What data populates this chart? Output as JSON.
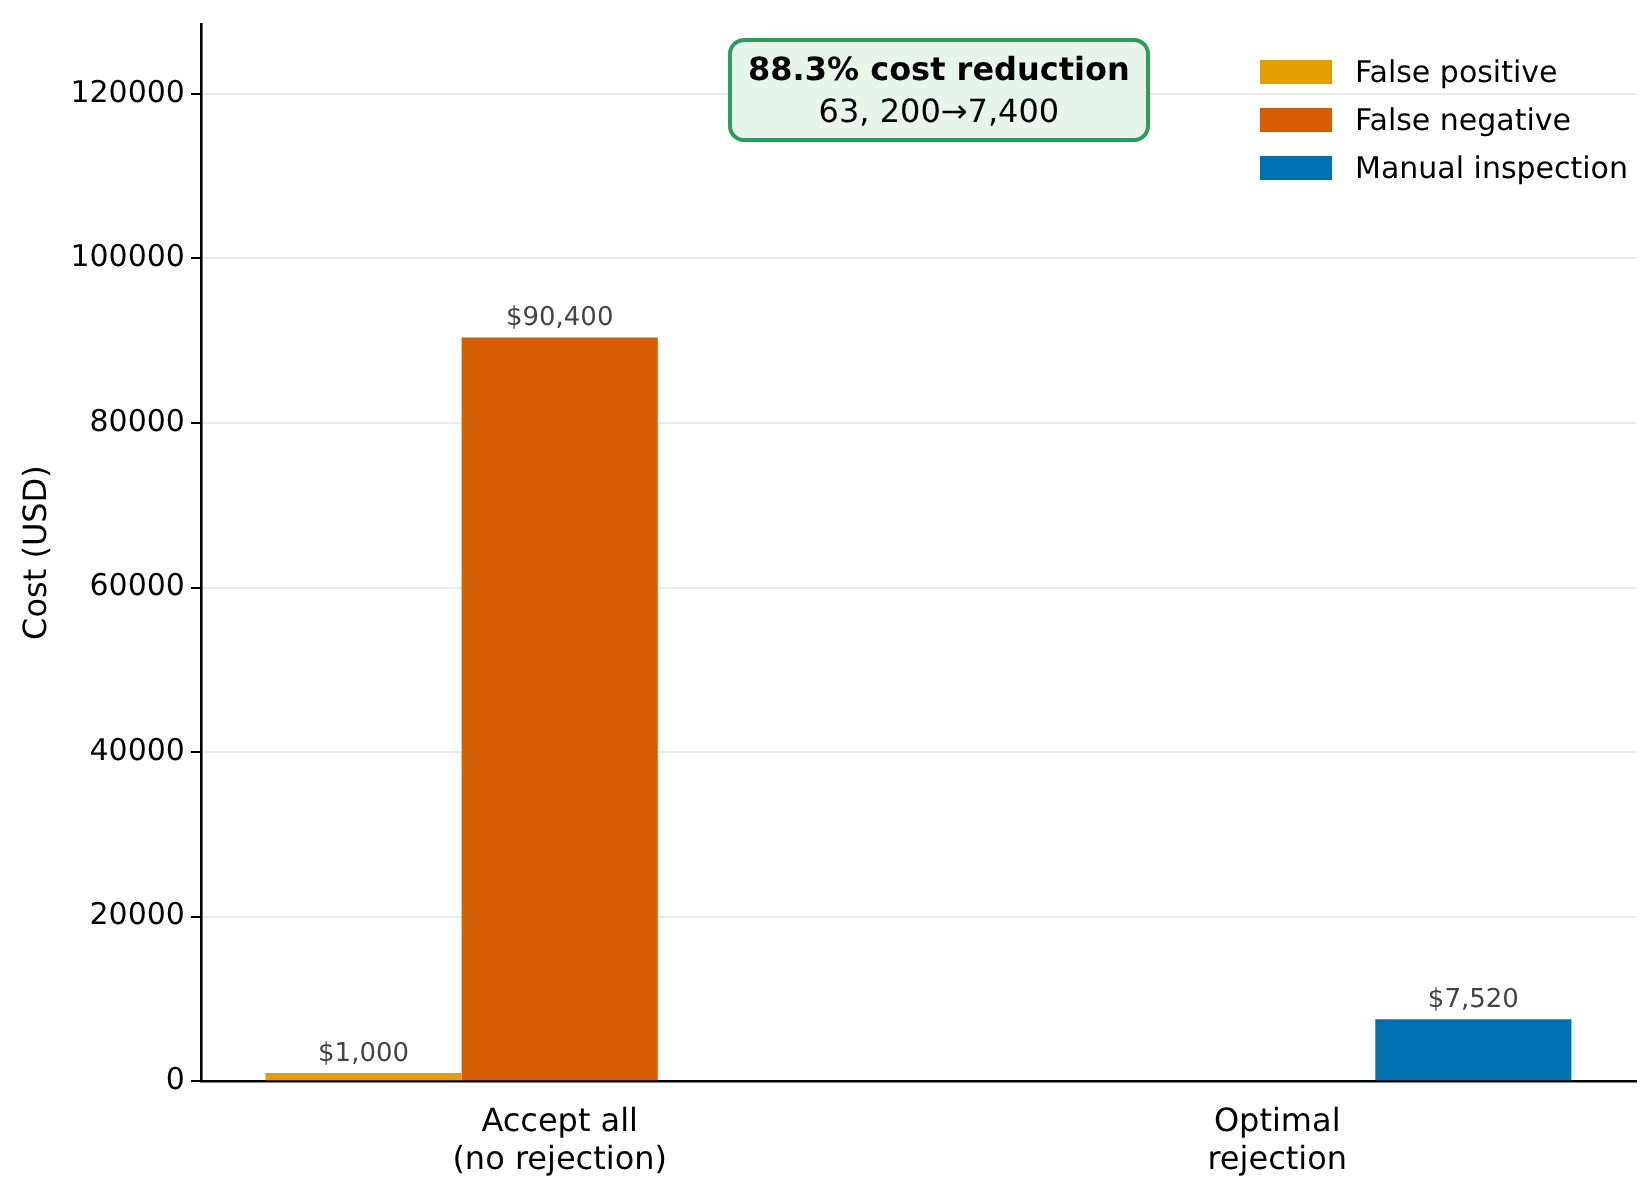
{
  "chart_data": {
    "type": "bar",
    "ylabel": "Cost (USD)",
    "categories": [
      "Accept all\n(no rejection)",
      "Optimal\nrejection"
    ],
    "series": [
      {
        "name": "False positive",
        "color": "#e69f00",
        "values": [
          1000,
          0
        ],
        "value_labels": [
          "$1,000",
          null
        ]
      },
      {
        "name": "False negative",
        "color": "#d55e00",
        "values": [
          90400,
          0
        ],
        "value_labels": [
          "$90,400",
          null
        ]
      },
      {
        "name": "Manual inspection",
        "color": "#0072b2",
        "values": [
          0,
          7520
        ],
        "value_labels": [
          null,
          "$7,520"
        ]
      }
    ],
    "ylim": [
      0,
      128500
    ],
    "yticks": [
      0,
      20000,
      40000,
      60000,
      80000,
      100000,
      120000
    ],
    "grid": "y",
    "legend": "top right",
    "annotations": [
      "88.3% cost reduction",
      "63, 200→7,400"
    ]
  }
}
